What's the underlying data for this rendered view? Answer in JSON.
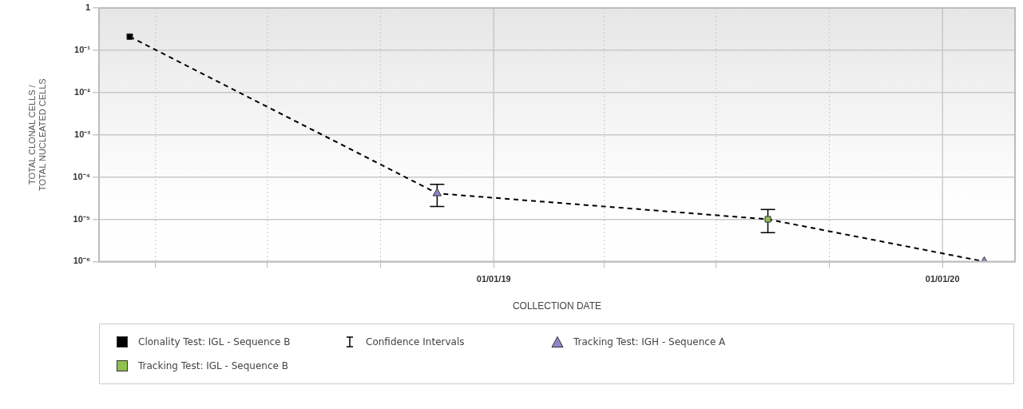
{
  "chart_data": {
    "type": "line",
    "xlabel": "COLLECTION DATE",
    "ylabel": "TOTAL CLONAL CELLS /\nTOTAL NUCLEATED CELLS",
    "xlim": [
      "2018-02-14",
      "2020-02-29"
    ],
    "xticks": [
      {
        "value": "2018-04-01",
        "label": null
      },
      {
        "value": "2018-07-01",
        "label": null
      },
      {
        "value": "2018-10-01",
        "label": null
      },
      {
        "value": "2019-01-01",
        "label": "01/01/19"
      },
      {
        "value": "2019-04-01",
        "label": null
      },
      {
        "value": "2019-07-01",
        "label": null
      },
      {
        "value": "2019-10-01",
        "label": null
      },
      {
        "value": "2020-01-01",
        "label": "01/01/20"
      }
    ],
    "ylim": [
      1e-06,
      1
    ],
    "log": true,
    "yticks": [
      {
        "value": 1e-06,
        "label": "10⁻⁶"
      },
      {
        "value": 1e-05,
        "label": "10⁻⁵"
      },
      {
        "value": 0.0001,
        "label": "10⁻⁴"
      },
      {
        "value": 0.001,
        "label": "10⁻³"
      },
      {
        "value": 0.01,
        "label": "10⁻²"
      },
      {
        "value": 0.1,
        "label": "10⁻¹"
      },
      1
    ],
    "grid": true,
    "legend": "bottom",
    "series": [
      {
        "color": "#000000",
        "line_style": "dashed",
        "marker": "none",
        "x": [
          "2018-03-11",
          "2018-11-16",
          "2019-08-12",
          "2020-02-04"
        ],
        "values": [
          0.21,
          4.1e-05,
          1e-05,
          1e-06
        ]
      },
      {
        "name": "Clonality Test: IGL - Sequence B",
        "type": "scatter",
        "color": "#000000",
        "marker": "square",
        "x": [
          "2018-03-11"
        ],
        "values": [
          0.21
        ]
      },
      {
        "name": "Confidence Intervals",
        "type": "scatter",
        "color": "#000000",
        "marker": "none"
      },
      {
        "name": "Tracking Test: IGH - Sequence A",
        "type": "scatter",
        "color": "#8e86c8",
        "marker": "triangle",
        "x": [
          "2018-11-16",
          "2020-02-04"
        ],
        "values": [
          4.1e-05,
          1e-06
        ],
        "errors": [
          [
            2e-05,
            6.7e-05
          ],
          null
        ]
      },
      {
        "name": "Tracking Test: IGL - Sequence B",
        "type": "scatter",
        "color": "#8fc050",
        "marker": "square",
        "x": [
          "2019-08-12"
        ],
        "values": [
          1e-05
        ],
        "errors": [
          [
            4.8e-06,
            1.7e-05
          ]
        ]
      }
    ]
  }
}
